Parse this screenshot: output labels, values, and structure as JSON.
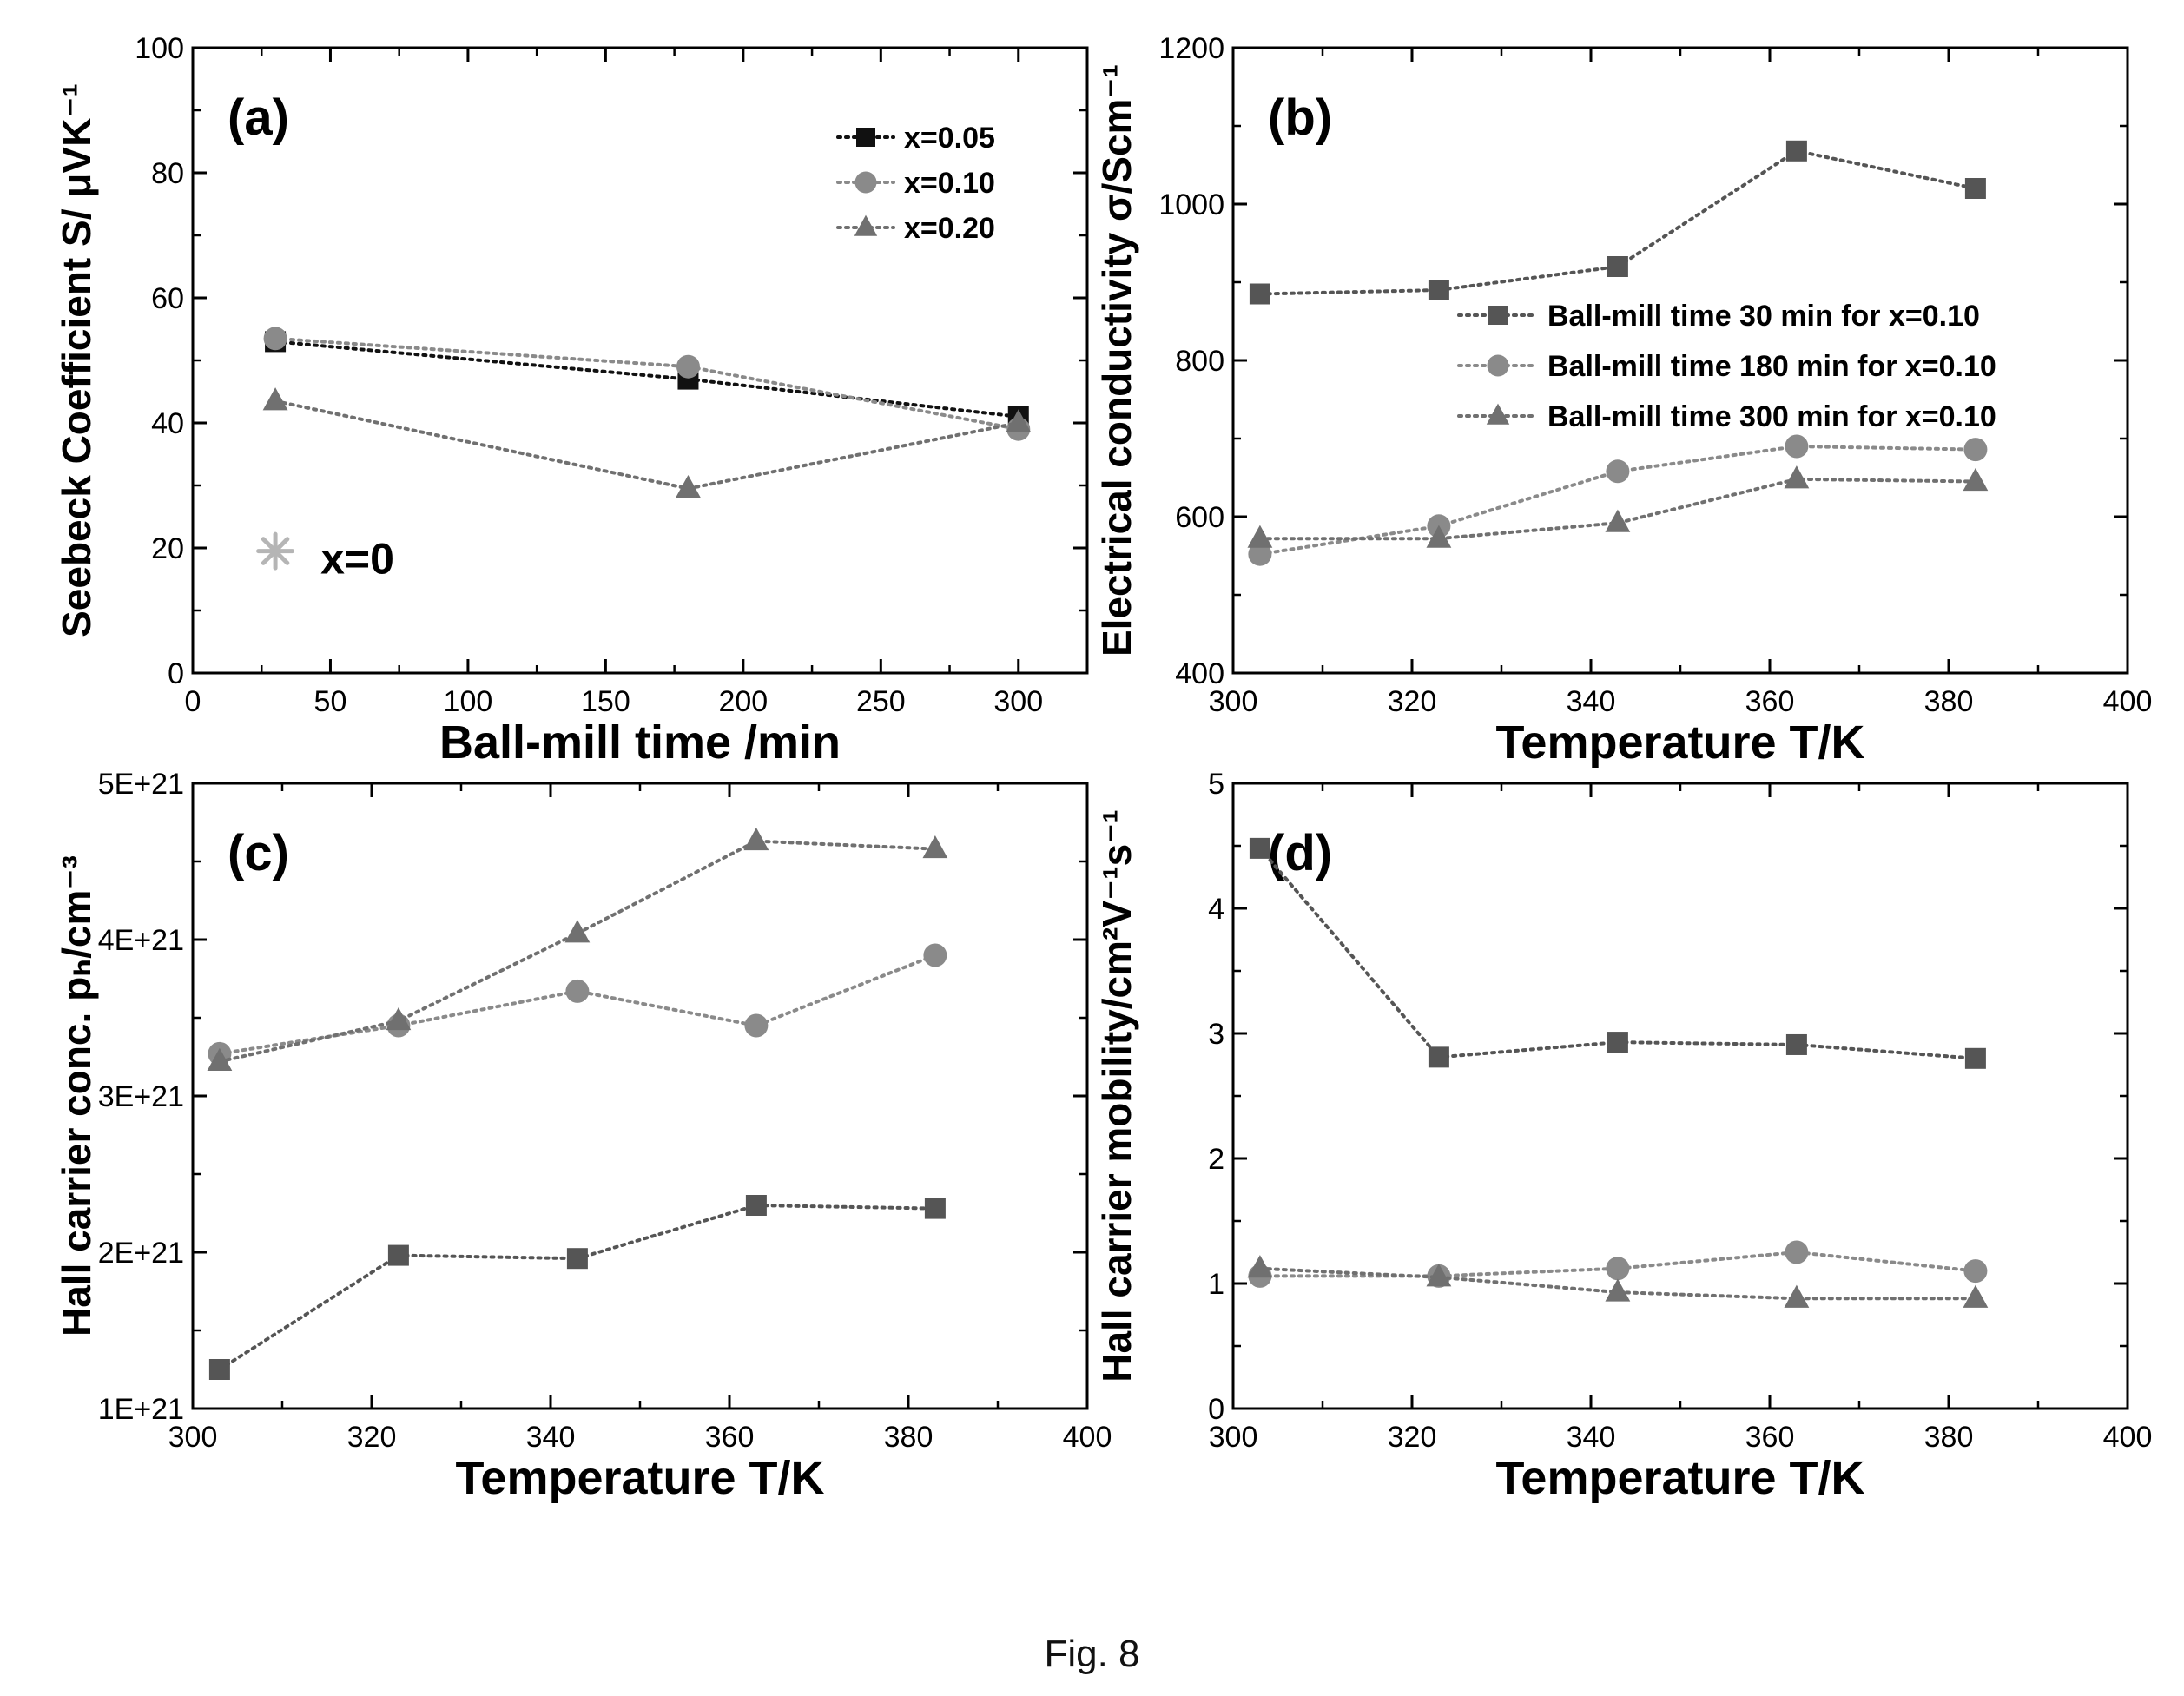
{
  "figure": {
    "caption": "Fig. 8"
  },
  "colors": {
    "axis": "#000000",
    "square_series": "#555555",
    "x005_series": "#111111",
    "circle_series": "#8a8a8a",
    "triangle_series": "#707070",
    "x0_marker": "#b5b5b5"
  },
  "chart_data": [
    {
      "id": "a",
      "type": "line",
      "panel_label": "(a)",
      "xlabel": "Ball-mill time /min",
      "ylabel": "Seebeck Coefficient S/ μVK⁻¹",
      "xlim": [
        0,
        325
      ],
      "ylim": [
        0,
        100
      ],
      "xticks": [
        0,
        50,
        100,
        150,
        200,
        250,
        300
      ],
      "yticks": [
        0,
        20,
        40,
        60,
        80,
        100
      ],
      "ytick_labels": [
        "0",
        "20",
        "40",
        "60",
        "80",
        "100"
      ],
      "legend_position": "top-right",
      "series": [
        {
          "name": "x=0.05",
          "marker": "square",
          "color": "#111111",
          "x": [
            30,
            180,
            300
          ],
          "y": [
            53,
            47,
            41
          ]
        },
        {
          "name": "x=0.10",
          "marker": "circle",
          "color": "#8a8a8a",
          "x": [
            30,
            180,
            300
          ],
          "y": [
            53.5,
            49,
            39
          ]
        },
        {
          "name": "x=0.20",
          "marker": "triangle",
          "color": "#707070",
          "x": [
            30,
            180,
            300
          ],
          "y": [
            43.5,
            29.5,
            40
          ]
        }
      ],
      "annotations": [
        {
          "text": "x=0",
          "marker": "asterisk",
          "x": 30,
          "y": 19.5
        }
      ]
    },
    {
      "id": "b",
      "type": "line",
      "panel_label": "(b)",
      "xlabel": "Temperature T/K",
      "ylabel": "Electrical conductivity σ/Scm⁻¹",
      "xlim": [
        300,
        400
      ],
      "ylim": [
        400,
        1200
      ],
      "xticks": [
        300,
        320,
        340,
        360,
        380,
        400
      ],
      "yticks": [
        400,
        600,
        800,
        1000,
        1200
      ],
      "ytick_labels": [
        "400",
        "600",
        "800",
        "1000",
        "1200"
      ],
      "legend_position": "center-right",
      "series": [
        {
          "name": "Ball-mill time 30 min for x=0.10",
          "marker": "square",
          "color": "#555555",
          "x": [
            303,
            323,
            343,
            363,
            383
          ],
          "y": [
            885,
            890,
            920,
            1068,
            1020
          ]
        },
        {
          "name": "Ball-mill time 180 min for x=0.10",
          "marker": "circle",
          "color": "#8a8a8a",
          "x": [
            303,
            323,
            343,
            363,
            383
          ],
          "y": [
            552,
            588,
            658,
            690,
            686
          ]
        },
        {
          "name": "Ball-mill time 300 min for x=0.10",
          "marker": "triangle",
          "color": "#707070",
          "x": [
            303,
            323,
            343,
            363,
            383
          ],
          "y": [
            572,
            572,
            592,
            648,
            645
          ]
        }
      ]
    },
    {
      "id": "c",
      "type": "line",
      "panel_label": "(c)",
      "xlabel": "Temperature T/K",
      "ylabel": "Hall carrier conc. pₕ/cm⁻³",
      "xlim": [
        300,
        400
      ],
      "ylim": [
        1e+21,
        5e+21
      ],
      "xticks": [
        300,
        320,
        340,
        360,
        380,
        400
      ],
      "yticks": [
        1e+21,
        2e+21,
        3e+21,
        4e+21,
        5e+21
      ],
      "ytick_labels": [
        "1E+21",
        "2E+21",
        "3E+21",
        "4E+21",
        "5E+21"
      ],
      "series": [
        {
          "name": "",
          "marker": "square",
          "color": "#555555",
          "x": [
            303,
            323,
            343,
            363,
            383
          ],
          "y": [
            1.25e+21,
            1.98e+21,
            1.96e+21,
            2.3e+21,
            2.28e+21
          ]
        },
        {
          "name": "",
          "marker": "circle",
          "color": "#8a8a8a",
          "x": [
            303,
            323,
            343,
            363,
            383
          ],
          "y": [
            3.27e+21,
            3.45e+21,
            3.67e+21,
            3.45e+21,
            3.9e+21
          ]
        },
        {
          "name": "",
          "marker": "triangle",
          "color": "#707070",
          "x": [
            303,
            323,
            343,
            363,
            383
          ],
          "y": [
            3.22e+21,
            3.48e+21,
            4.04e+21,
            4.63e+21,
            4.58e+21
          ]
        }
      ]
    },
    {
      "id": "d",
      "type": "line",
      "panel_label": "(d)",
      "xlabel": "Temperature T/K",
      "ylabel": "Hall carrier mobility/cm²V⁻¹s⁻¹",
      "xlim": [
        300,
        400
      ],
      "ylim": [
        0,
        5
      ],
      "xticks": [
        300,
        320,
        340,
        360,
        380,
        400
      ],
      "yticks": [
        0,
        1,
        2,
        3,
        4,
        5
      ],
      "ytick_labels": [
        "0",
        "1",
        "2",
        "3",
        "4",
        "5"
      ],
      "series": [
        {
          "name": "",
          "marker": "square",
          "color": "#555555",
          "x": [
            303,
            323,
            343,
            363,
            383
          ],
          "y": [
            4.48,
            2.81,
            2.93,
            2.91,
            2.8
          ]
        },
        {
          "name": "",
          "marker": "circle",
          "color": "#8a8a8a",
          "x": [
            303,
            323,
            343,
            363,
            383
          ],
          "y": [
            1.06,
            1.06,
            1.12,
            1.25,
            1.1
          ]
        },
        {
          "name": "",
          "marker": "triangle",
          "color": "#707070",
          "x": [
            303,
            323,
            343,
            363,
            383
          ],
          "y": [
            1.12,
            1.05,
            0.93,
            0.88,
            0.88
          ]
        }
      ]
    }
  ]
}
